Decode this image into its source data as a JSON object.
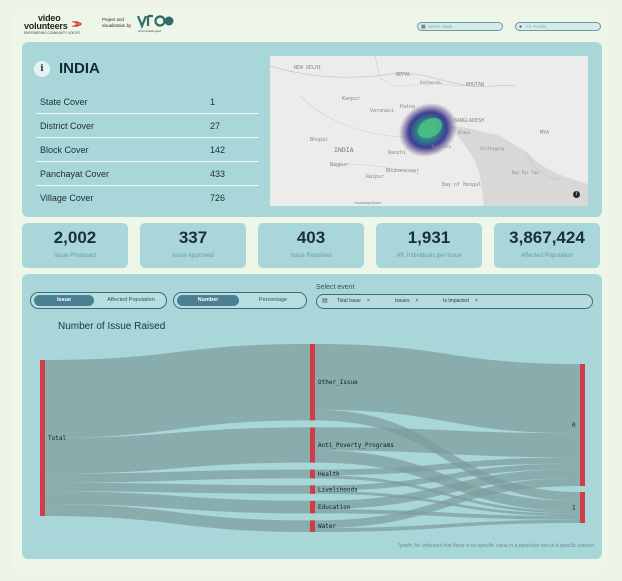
{
  "header": {
    "logo_text_line1": "video",
    "logo_text_line2": "volunteers",
    "logo_tagline": "EMPOWERING COMMUNITY VOICES",
    "project_label": "Project and visualization by",
    "partner_tagline": "dt for social good",
    "search_placeholder": "Select State",
    "district_placeholder": "Fil. Profile"
  },
  "summary": {
    "title": "INDIA",
    "info_icon": "i",
    "covers": [
      {
        "label": "State Cover",
        "value": "1"
      },
      {
        "label": "District Cover",
        "value": "27"
      },
      {
        "label": "Block Cover",
        "value": "142"
      },
      {
        "label": "Panchayat Cover",
        "value": "433"
      },
      {
        "label": "Village Cover",
        "value": "726"
      }
    ]
  },
  "map": {
    "labels": [
      "NEW DELHI",
      "NEPAL",
      "Kathmandu",
      "BHUTAN",
      "Kanpur",
      "Varanasi",
      "Patna",
      "Bhopal",
      "INDIA",
      "BANGLADESH",
      "Dhaka",
      "Ranchi",
      "Kolkata",
      "Nagpur",
      "Raipur",
      "Bhubaneswar",
      "Chittagong",
      "Bay of Bengal",
      "Nay Pyi Taw",
      "Visakhapatnam",
      "MYA"
    ],
    "credit": "Visakhapatnam",
    "info_icon": "i"
  },
  "stats": [
    {
      "value": "2,002",
      "label": "Issue Produced"
    },
    {
      "value": "337",
      "label": "Issue Approved"
    },
    {
      "value": "403",
      "label": "Issue Resolved"
    },
    {
      "value": "1,931",
      "label": "Aff. Individuals per Issue"
    },
    {
      "value": "3,867,424",
      "label": "Affected Population"
    }
  ],
  "controls": {
    "toggle1": {
      "on": "Issue",
      "off": "Affected Population"
    },
    "toggle2": {
      "on": "Number",
      "off": "Percentage"
    },
    "select_label": "Select event",
    "chips": [
      "Total Issue",
      "Issues",
      "Is Impacted"
    ]
  },
  "sankey": {
    "title": "Number of Issue Raised",
    "footnote": "*prefix 'ns' indicates that there is no specific value in a particular row of a specific column",
    "colors": {
      "node": "#d23c47",
      "link": "#7d9c9d"
    }
  },
  "chart_data": {
    "type": "sankey",
    "title": "Number of Issue Raised",
    "nodes": [
      "Total",
      "Other_Issue",
      "Anti_Poverty_Programs",
      "Health",
      "Livelihoods",
      "Education",
      "Water",
      "0",
      "1"
    ],
    "links": [
      {
        "source": "Total",
        "target": "Other_Issue",
        "value": 1000
      },
      {
        "source": "Total",
        "target": "Anti_Poverty_Programs",
        "value": 460
      },
      {
        "source": "Total",
        "target": "Health",
        "value": 115
      },
      {
        "source": "Total",
        "target": "Livelihoods",
        "value": 110
      },
      {
        "source": "Total",
        "target": "Education",
        "value": 165
      },
      {
        "source": "Total",
        "target": "Water",
        "value": 152
      },
      {
        "source": "Other_Issue",
        "target": "0",
        "value": 860
      },
      {
        "source": "Other_Issue",
        "target": "1",
        "value": 140
      },
      {
        "source": "Anti_Poverty_Programs",
        "target": "0",
        "value": 300
      },
      {
        "source": "Anti_Poverty_Programs",
        "target": "1",
        "value": 160
      },
      {
        "source": "Health",
        "target": "0",
        "value": 75
      },
      {
        "source": "Health",
        "target": "1",
        "value": 40
      },
      {
        "source": "Livelihoods",
        "target": "0",
        "value": 70
      },
      {
        "source": "Livelihoods",
        "target": "1",
        "value": 40
      },
      {
        "source": "Education",
        "target": "0",
        "value": 110
      },
      {
        "source": "Education",
        "target": "1",
        "value": 55
      },
      {
        "source": "Water",
        "target": "0",
        "value": 100
      },
      {
        "source": "Water",
        "target": "1",
        "value": 52
      }
    ],
    "node_labels": {
      "Total": "Total",
      "Other_Issue": "Other_Issue",
      "Anti_Poverty_Programs": "Anti_Poverty_Programs",
      "Health": "Health",
      "Livelihoods": "Livelihoods",
      "Education": "Education",
      "Water": "Water",
      "0": "0",
      "1": "1"
    }
  }
}
